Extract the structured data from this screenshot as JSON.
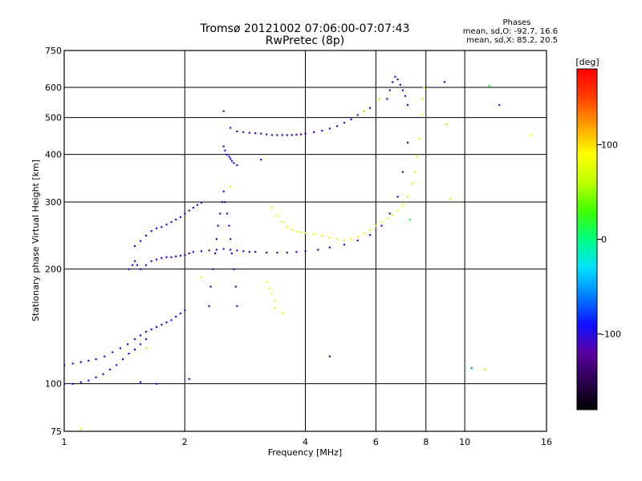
{
  "chart_data": {
    "type": "scatter",
    "title": "Tromsø 20121002 07:06:00-07:07:43",
    "subtitle": "RwPretec (8p)",
    "xlabel": "Frequency [MHz]",
    "ylabel": "Stationary phase Virtual Height [km]",
    "x_scale": "log",
    "y_scale": "log",
    "xlim": [
      1,
      16
    ],
    "ylim": [
      75,
      750
    ],
    "x_ticks": [
      1,
      2,
      4,
      6,
      8,
      10,
      16
    ],
    "x_tick_labels": [
      "1",
      "2",
      "4",
      "6",
      "8",
      "10",
      "16"
    ],
    "y_ticks": [
      75,
      100,
      200,
      300,
      400,
      500,
      600,
      750
    ],
    "y_tick_labels": [
      "75",
      "100",
      "200",
      "300",
      "400",
      "500",
      "600",
      "750"
    ],
    "grid": true,
    "stats": {
      "heading": "Phases",
      "line_o": "mean, sd,O: -92.7, 16.6",
      "line_x": "mean, sd,X:  85.2, 20.5"
    },
    "colorbar": {
      "label": "[deg]",
      "range": [
        -180,
        180
      ],
      "ticks": [
        100,
        0,
        -100
      ],
      "tick_labels": [
        "100",
        "0",
        "-100"
      ],
      "colors": [
        "#000000",
        "#2a0050",
        "#5a00a0",
        "#1010ff",
        "#0080ff",
        "#00e0ff",
        "#00ff80",
        "#40ff00",
        "#c0ff00",
        "#ffff00",
        "#ffa000",
        "#ff4000",
        "#ff0000"
      ]
    },
    "series": [
      {
        "phase": -95,
        "x": [
          1.0,
          1.05,
          1.1,
          1.15,
          1.2,
          1.26,
          1.32,
          1.38,
          1.44,
          1.5,
          1.55,
          1.6,
          1.65,
          1.7,
          1.75,
          1.8,
          1.85,
          1.9,
          1.95,
          2.0
        ],
        "y": [
          112,
          113,
          114,
          115,
          116,
          118,
          121,
          124,
          127,
          131,
          134,
          137,
          139,
          141,
          143,
          145,
          147,
          150,
          153,
          156
        ]
      },
      {
        "phase": -95,
        "x": [
          1.0,
          1.05,
          1.1,
          1.15,
          1.2,
          1.25,
          1.3,
          1.35,
          1.4,
          1.45,
          1.5,
          1.55,
          1.6
        ],
        "y": [
          100,
          100,
          101,
          102,
          104,
          106,
          109,
          112,
          116,
          120,
          123,
          127,
          131
        ]
      },
      {
        "phase": -105,
        "x": [
          1.45,
          1.48,
          1.5,
          1.52,
          1.55,
          1.6,
          1.65,
          1.7,
          1.75,
          1.8,
          1.85,
          1.9,
          1.95,
          2.0,
          2.05,
          2.1,
          2.2,
          2.3,
          2.4,
          2.5,
          2.6,
          2.7,
          2.8,
          2.9,
          3.0,
          3.2,
          3.4,
          3.6,
          3.8,
          4.0,
          4.3,
          4.6,
          5.0,
          5.4,
          5.8,
          6.2,
          6.5,
          6.8,
          7.0,
          7.2
        ],
        "y": [
          200,
          205,
          210,
          205,
          200,
          205,
          210,
          212,
          214,
          215,
          215,
          216,
          217,
          218,
          220,
          222,
          223,
          224,
          225,
          226,
          225,
          224,
          223,
          222,
          222,
          221,
          221,
          221,
          222,
          223,
          225,
          228,
          232,
          238,
          246,
          260,
          280,
          310,
          360,
          430
        ]
      },
      {
        "phase": -100,
        "x": [
          1.5,
          1.55,
          1.6,
          1.65,
          1.7,
          1.75,
          1.8,
          1.85,
          1.9,
          1.95,
          2.0,
          2.05,
          2.1,
          2.15,
          2.2
        ],
        "y": [
          230,
          237,
          245,
          252,
          256,
          258,
          262,
          266,
          270,
          274,
          280,
          285,
          290,
          295,
          299
        ]
      },
      {
        "phase": -110,
        "x": [
          2.3,
          2.32,
          2.35,
          2.38,
          2.4,
          2.42,
          2.45,
          2.48,
          2.5,
          2.52,
          2.55,
          2.58,
          2.6,
          2.62,
          2.65,
          2.68,
          2.7
        ],
        "y": [
          160,
          180,
          200,
          220,
          240,
          260,
          280,
          300,
          320,
          300,
          280,
          260,
          240,
          220,
          200,
          180,
          160
        ]
      },
      {
        "phase": -110,
        "x": [
          2.5,
          2.6,
          2.7,
          2.8,
          2.9,
          3.0,
          3.1,
          3.2,
          3.3,
          3.4,
          3.5,
          3.6,
          3.7,
          3.8,
          3.9,
          4.0,
          4.2,
          4.4,
          4.6,
          4.8,
          5.0,
          5.2,
          5.4,
          5.6,
          5.8
        ],
        "y": [
          520,
          470,
          460,
          458,
          456,
          455,
          454,
          452,
          450,
          450,
          450,
          450,
          450,
          451,
          452,
          454,
          458,
          462,
          468,
          475,
          485,
          495,
          508,
          520,
          530
        ]
      },
      {
        "phase": -100,
        "x": [
          2.5,
          2.52,
          2.55,
          2.58,
          2.6,
          2.62,
          2.65,
          2.7
        ],
        "y": [
          420,
          410,
          400,
          395,
          390,
          385,
          380,
          375
        ]
      },
      {
        "phase": -105,
        "x": [
          6.4,
          6.5,
          6.6,
          6.7,
          6.8,
          6.9,
          7.0,
          7.1,
          7.2
        ],
        "y": [
          560,
          590,
          620,
          640,
          630,
          610,
          590,
          570,
          540
        ]
      },
      {
        "phase": 95,
        "x": [
          3.3,
          3.4,
          3.5,
          3.6,
          3.7,
          3.8,
          3.9,
          4.0,
          4.2,
          4.4,
          4.6,
          4.8,
          5.0,
          5.2,
          5.4,
          5.6,
          5.8,
          6.0,
          6.2,
          6.4,
          6.6,
          6.8,
          7.0,
          7.2,
          7.4,
          7.5,
          7.6,
          7.7,
          7.8,
          7.85,
          7.9
        ],
        "y": [
          290,
          276,
          266,
          258,
          254,
          251,
          250,
          249,
          247,
          245,
          242,
          240,
          238,
          240,
          243,
          248,
          254,
          260,
          266,
          272,
          278,
          285,
          295,
          310,
          335,
          360,
          395,
          440,
          510,
          560,
          600
        ]
      },
      {
        "phase": 80,
        "x": [
          3.2,
          3.25,
          3.3,
          3.35
        ],
        "y": [
          185,
          178,
          172,
          165
        ]
      }
    ],
    "scattered_points": {
      "x": [
        1.1,
        1.55,
        1.6,
        1.7,
        2.05,
        2.2,
        2.6,
        3.1,
        3.35,
        3.5,
        4.6,
        5.6,
        6.1,
        7.3,
        8.9,
        9.0,
        9.2,
        10.4,
        11.2,
        11.5,
        12.2,
        14.6
      ],
      "y": [
        76,
        101,
        124,
        100,
        103,
        190,
        330,
        388,
        158,
        153,
        118,
        520,
        560,
        270,
        620,
        480,
        306,
        110,
        109,
        606,
        540,
        450
      ],
      "phase": [
        60,
        -100,
        70,
        -90,
        -100,
        80,
        70,
        -100,
        60,
        70,
        -130,
        70,
        60,
        10,
        -100,
        50,
        70,
        -60,
        70,
        20,
        -110,
        80
      ]
    }
  }
}
